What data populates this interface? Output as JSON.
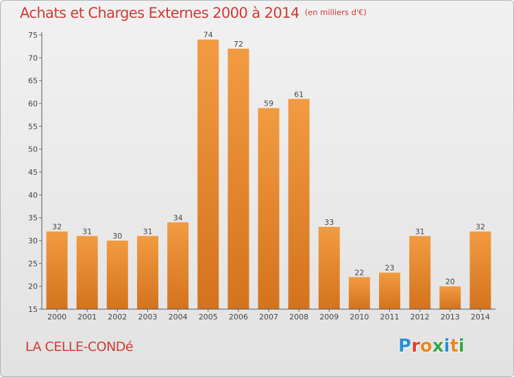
{
  "chart_data": {
    "type": "bar",
    "title": "Achats et Charges Externes 2000 à 2014",
    "subtitle": "(en milliers d'€)",
    "categories": [
      "2000",
      "2001",
      "2002",
      "2003",
      "2004",
      "2005",
      "2006",
      "2007",
      "2008",
      "2009",
      "2010",
      "2011",
      "2012",
      "2013",
      "2014"
    ],
    "values": [
      32,
      31,
      30,
      31,
      34,
      74,
      72,
      59,
      61,
      33,
      22,
      23,
      31,
      20,
      32
    ],
    "ylim": [
      15,
      75
    ],
    "yticks": [
      15,
      20,
      25,
      30,
      35,
      40,
      45,
      50,
      55,
      60,
      65,
      70,
      75
    ],
    "grid": false,
    "bar_color": "#f29b41",
    "bar_color_dark": "#d4731d"
  },
  "footer": {
    "commune": "LA CELLE-CONDé",
    "logo": "Proxiti"
  },
  "colors": {
    "title": "#ce3b34",
    "logo_letters": [
      "#2c8fd6",
      "#e73d2b",
      "#e8891e",
      "#3aa64a",
      "#2c8fd6",
      "#e8891e",
      "#3aa64a"
    ]
  }
}
